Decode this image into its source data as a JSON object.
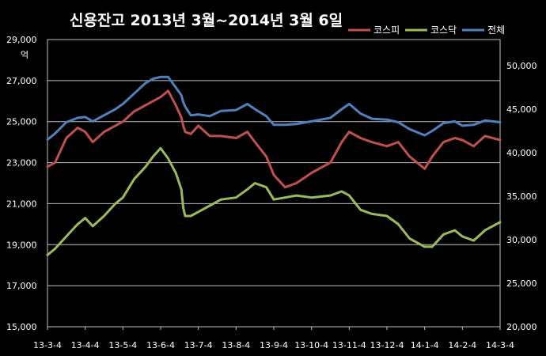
{
  "chart_data": {
    "type": "line",
    "title": "신용잔고 2013년 3월~2014년 3월 6일",
    "y_left_unit": "억",
    "y_left_range": [
      15000,
      29000
    ],
    "y_left_ticks": [
      "15,000",
      "17,000",
      "19,000",
      "21,000",
      "23,000",
      "25,000",
      "27,000",
      "29,000"
    ],
    "y_right_range": [
      20000,
      53000
    ],
    "y_right_ticks": [
      "20,000",
      "25,000",
      "30,000",
      "35,000",
      "40,000",
      "45,000",
      "50,000"
    ],
    "x_ticks": [
      "13-3-4",
      "13-4-4",
      "13-5-4",
      "13-6-4",
      "13-7-4",
      "13-8-4",
      "13-9-4",
      "13-10-4",
      "13-11-4",
      "13-12-4",
      "14-1-4",
      "14-2-4",
      "14-3-4"
    ],
    "grid": true,
    "legend_position": "top-right",
    "series": [
      {
        "name": "코스피",
        "color": "#c0504d",
        "axis": "left",
        "x": [
          0,
          0.2,
          0.5,
          0.8,
          1.0,
          1.2,
          1.5,
          1.8,
          2.0,
          2.3,
          2.6,
          2.8,
          3.0,
          3.2,
          3.4,
          3.55,
          3.6,
          3.65,
          3.8,
          4.0,
          4.3,
          4.6,
          5.0,
          5.3,
          5.5,
          5.8,
          6.0,
          6.3,
          6.6,
          7.0,
          7.5,
          7.8,
          8.0,
          8.3,
          8.6,
          9.0,
          9.3,
          9.6,
          10.0,
          10.2,
          10.5,
          10.8,
          11.0,
          11.3,
          11.6,
          12.0
        ],
        "y": [
          22800,
          23000,
          24200,
          24700,
          24500,
          24000,
          24500,
          24800,
          25000,
          25500,
          25800,
          26000,
          26200,
          26500,
          25800,
          25200,
          24800,
          24500,
          24400,
          24800,
          24300,
          24300,
          24200,
          24500,
          24000,
          23300,
          22400,
          21800,
          22000,
          22500,
          23000,
          24000,
          24500,
          24200,
          24000,
          23800,
          24000,
          23300,
          22700,
          23300,
          24000,
          24200,
          24100,
          23800,
          24300,
          24100
        ]
      },
      {
        "name": "코스닥",
        "color": "#9bbb59",
        "axis": "left",
        "x": [
          0,
          0.2,
          0.5,
          0.8,
          1.0,
          1.2,
          1.5,
          1.8,
          2.0,
          2.3,
          2.6,
          2.8,
          3.0,
          3.2,
          3.4,
          3.55,
          3.6,
          3.65,
          3.8,
          4.0,
          4.3,
          4.6,
          5.0,
          5.3,
          5.5,
          5.8,
          6.0,
          6.3,
          6.6,
          7.0,
          7.5,
          7.8,
          8.0,
          8.3,
          8.6,
          9.0,
          9.3,
          9.6,
          10.0,
          10.2,
          10.5,
          10.8,
          11.0,
          11.3,
          11.6,
          12.0
        ],
        "y": [
          18500,
          18800,
          19400,
          20000,
          20300,
          19900,
          20400,
          21000,
          21300,
          22200,
          22800,
          23300,
          23700,
          23200,
          22500,
          21700,
          20800,
          20400,
          20400,
          20600,
          20900,
          21200,
          21300,
          21700,
          22000,
          21800,
          21200,
          21300,
          21400,
          21300,
          21400,
          21600,
          21400,
          20700,
          20500,
          20400,
          20000,
          19300,
          18900,
          18900,
          19500,
          19700,
          19400,
          19200,
          19700,
          20100
        ]
      },
      {
        "name": "전체",
        "color": "#4f81bd",
        "axis": "right",
        "x": [
          0,
          0.2,
          0.5,
          0.8,
          1.0,
          1.2,
          1.5,
          1.8,
          2.0,
          2.3,
          2.6,
          2.8,
          3.0,
          3.2,
          3.4,
          3.55,
          3.6,
          3.65,
          3.8,
          4.0,
          4.3,
          4.6,
          5.0,
          5.3,
          5.5,
          5.8,
          6.0,
          6.3,
          6.6,
          7.0,
          7.5,
          7.8,
          8.0,
          8.3,
          8.6,
          9.0,
          9.3,
          9.6,
          10.0,
          10.2,
          10.5,
          10.8,
          11.0,
          11.3,
          11.6,
          12.0
        ],
        "y": [
          41500,
          42200,
          43500,
          44000,
          44100,
          43600,
          44300,
          45000,
          45600,
          46800,
          48000,
          48500,
          48700,
          48700,
          47500,
          46600,
          45800,
          45300,
          44300,
          44400,
          44200,
          44800,
          44900,
          45600,
          45000,
          44200,
          43200,
          43200,
          43300,
          43600,
          44000,
          45000,
          45600,
          44500,
          43900,
          43800,
          43500,
          42700,
          42000,
          42500,
          43400,
          43600,
          43100,
          43200,
          43700,
          43500
        ]
      }
    ]
  }
}
